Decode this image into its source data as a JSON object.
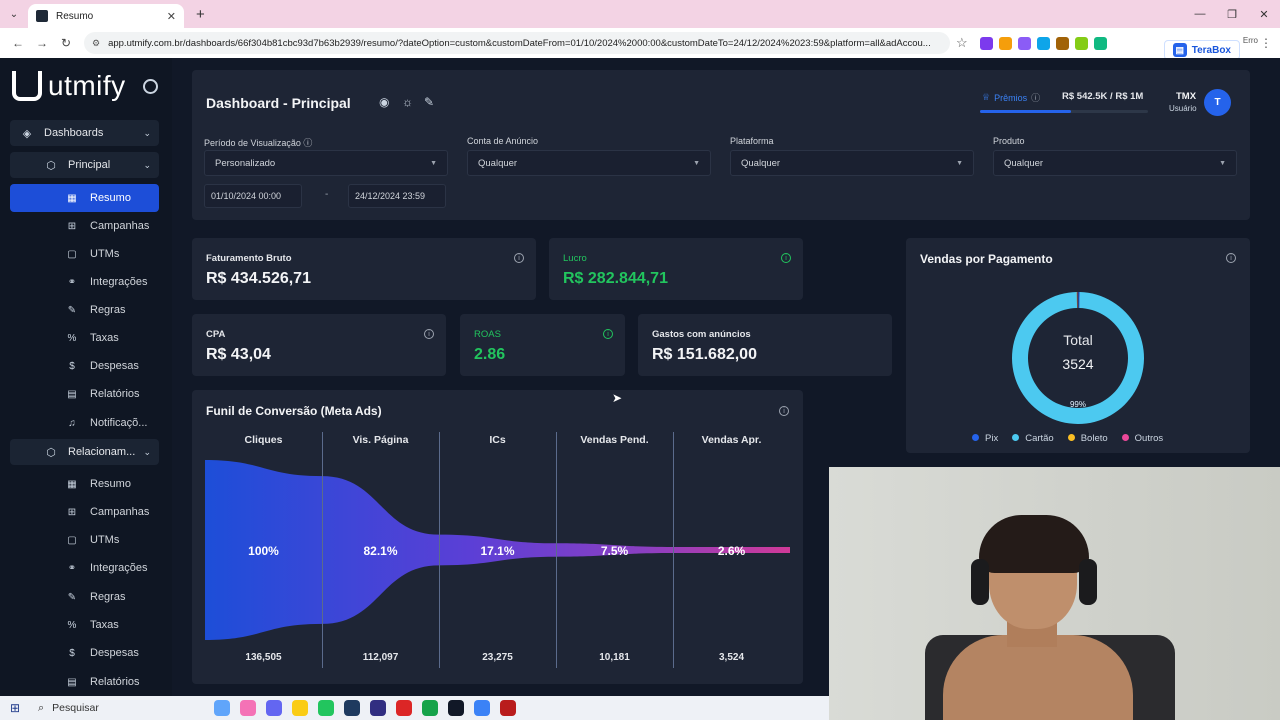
{
  "browser": {
    "tab_title": "Resumo",
    "url": "app.utmify.com.br/dashboards/66f304b81cbc93d7b63b2939/resumo/?dateOption=custom&customDateFrom=01/10/2024%2000:00&customDateTo=24/12/2024%2023:59&platform=all&adAccou...",
    "ext_label": "TeraBox",
    "error_label": "Erro"
  },
  "sidebar": {
    "brand": "utmify",
    "sections": [
      {
        "label": "Dashboards"
      },
      {
        "label": "Principal"
      },
      {
        "label": "Relacionam..."
      }
    ],
    "principal_items": [
      {
        "label": "Resumo"
      },
      {
        "label": "Campanhas"
      },
      {
        "label": "UTMs"
      },
      {
        "label": "Integrações"
      },
      {
        "label": "Regras"
      },
      {
        "label": "Taxas"
      },
      {
        "label": "Despesas"
      },
      {
        "label": "Relatórios"
      },
      {
        "label": "Notificaçõ..."
      }
    ],
    "relacionamento_items": [
      {
        "label": "Resumo"
      },
      {
        "label": "Campanhas"
      },
      {
        "label": "UTMs"
      },
      {
        "label": "Integrações"
      },
      {
        "label": "Regras"
      },
      {
        "label": "Taxas"
      },
      {
        "label": "Despesas"
      },
      {
        "label": "Relatórios"
      }
    ]
  },
  "header": {
    "title": "Dashboard - Principal",
    "premios_label": "Prêmios",
    "premios_value": "R$ 542.5K  /  R$ 1M",
    "premios_progress": 0.5425,
    "user_name": "TMX",
    "user_role": "Usuário",
    "avatar_initial": "T"
  },
  "filters": {
    "period_label": "Período de Visualização",
    "period_value": "Personalizado",
    "date_from": "01/10/2024 00:00",
    "date_to": "24/12/2024 23:59",
    "date_sep": "-",
    "account_label": "Conta de Anúncio",
    "account_value": "Qualquer",
    "platform_label": "Plataforma",
    "platform_value": "Qualquer",
    "product_label": "Produto",
    "product_value": "Qualquer"
  },
  "metrics": {
    "faturamento": {
      "label": "Faturamento Bruto",
      "value": "R$ 434.526,71"
    },
    "lucro": {
      "label": "Lucro",
      "value": "R$ 282.844,71"
    },
    "cpa": {
      "label": "CPA",
      "value": "R$ 43,04"
    },
    "roas": {
      "label": "ROAS",
      "value": "2.86"
    },
    "gastos": {
      "label": "Gastos com anúncios",
      "value": "R$ 151.682,00"
    }
  },
  "vendas_pagamento": {
    "title": "Vendas por Pagamento",
    "center_label": "Total",
    "center_value": "3524",
    "slice_label": "99%",
    "legend": [
      {
        "name": "Pix",
        "color": "#2563eb"
      },
      {
        "name": "Cartão",
        "color": "#4cc9f0"
      },
      {
        "name": "Boleto",
        "color": "#fbbf24"
      },
      {
        "name": "Outros",
        "color": "#ec4899"
      }
    ]
  },
  "chart_data": [
    {
      "type": "pie",
      "title": "Vendas por Pagamento",
      "labels": [
        "Pix",
        "Cartão",
        "Boleto",
        "Outros"
      ],
      "values": [
        0.4,
        99.3,
        0.1,
        0.2
      ],
      "colors": [
        "#2563eb",
        "#4cc9f0",
        "#fbbf24",
        "#ec4899"
      ],
      "donut": true,
      "center_text": "Total 3524",
      "slice_label": "99%",
      "legend": "bottom"
    },
    {
      "type": "area",
      "title": "Funil de Conversão (Meta Ads)",
      "categories": [
        "Cliques",
        "Vis. Página",
        "ICs",
        "Vendas Pend.",
        "Vendas Apr."
      ],
      "values": [
        136505,
        112097,
        23275,
        10181,
        3524
      ],
      "percent_labels": [
        "100%",
        "82.1%",
        "17.1%",
        "7.5%",
        "2.6%"
      ]
    }
  ],
  "funnel": {
    "title": "Funil de Conversão (Meta Ads)",
    "stages": [
      {
        "label": "Cliques",
        "pct": "100%",
        "count": "136,505"
      },
      {
        "label": "Vis. Página",
        "pct": "82.1%",
        "count": "112,097"
      },
      {
        "label": "ICs",
        "pct": "17.1%",
        "count": "23,275"
      },
      {
        "label": "Vendas Pend.",
        "pct": "7.5%",
        "count": "10,181"
      },
      {
        "label": "Vendas Apr.",
        "pct": "2.6%",
        "count": "3,524"
      }
    ]
  },
  "taskbar": {
    "search_label": "Pesquisar"
  }
}
